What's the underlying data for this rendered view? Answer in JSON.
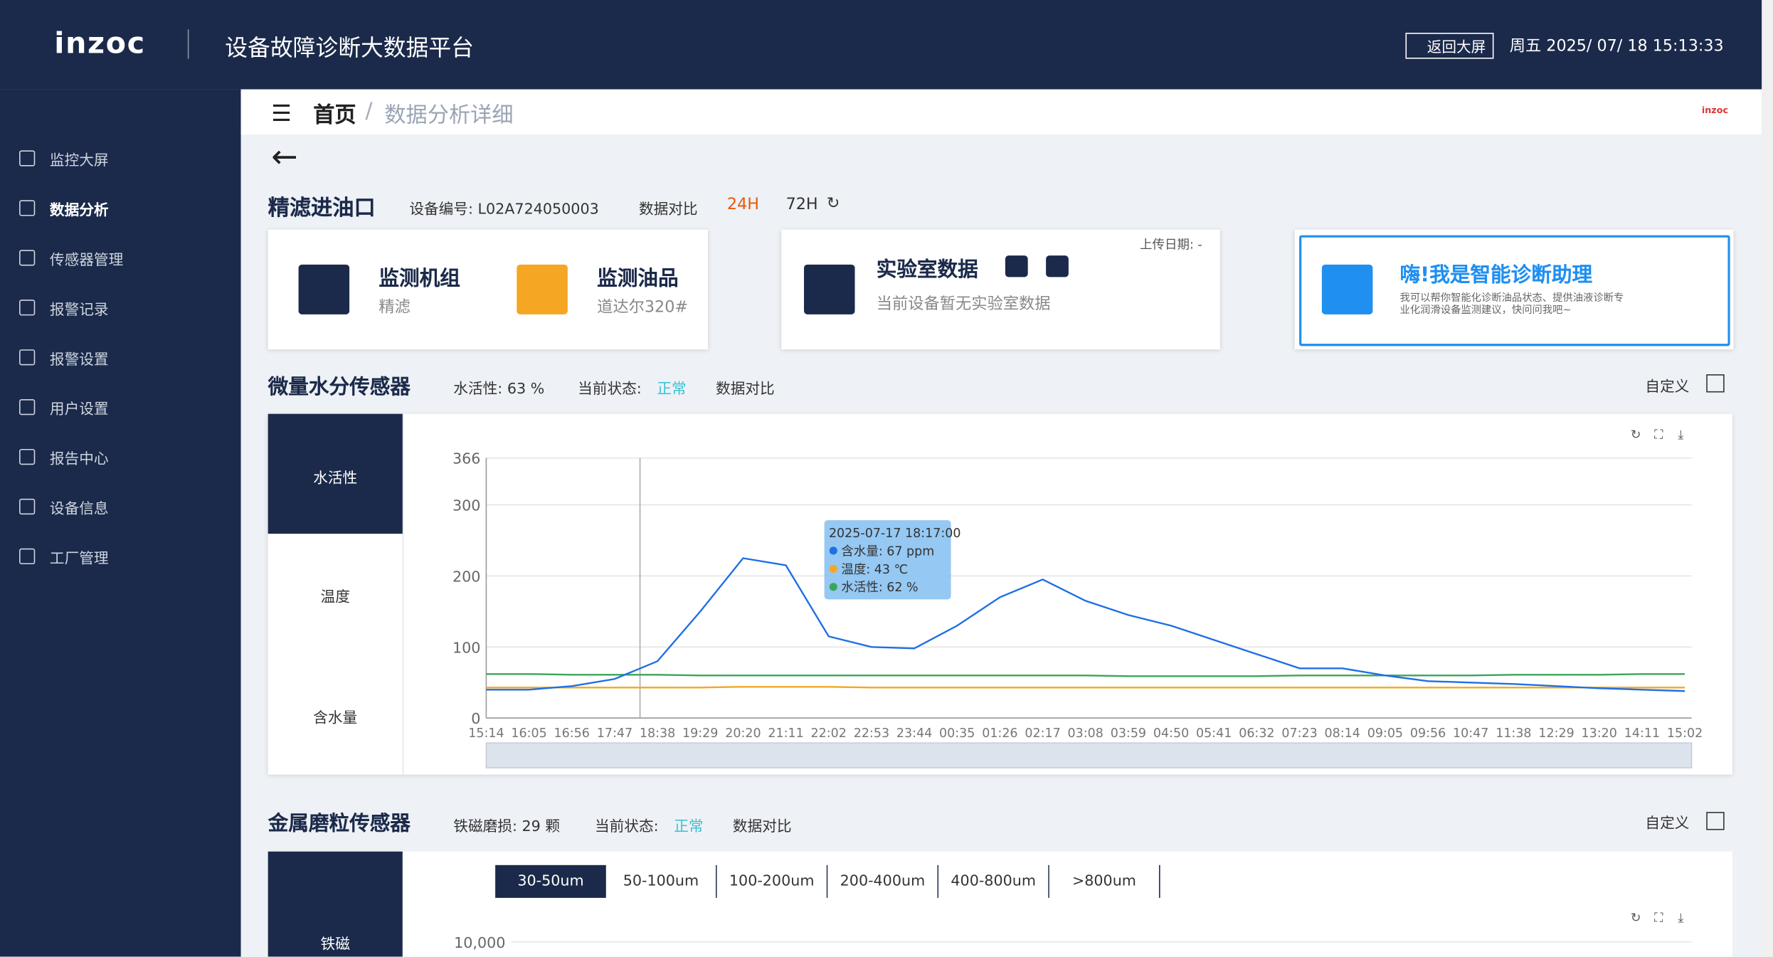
{
  "header": {
    "logo": "inzoc",
    "title": "设备故障诊断大数据平台",
    "back": "返回大屏",
    "datetime": "周五 2025/ 07/ 18 15:13:33"
  },
  "sidebar": {
    "items": [
      "监控大屏",
      "数据分析",
      "传感器管理",
      "报警记录",
      "报警设置",
      "用户设置",
      "报告中心",
      "设备信息",
      "工厂管理"
    ]
  },
  "breadcrumb": {
    "home": "首页",
    "current": "数据分析详细",
    "logo": "inzoc"
  },
  "device": {
    "name": "精滤进油口",
    "id": "设备编号: L02A724050003",
    "compare": "数据对比",
    "h24": "24H",
    "h72": "72H"
  },
  "cards": {
    "unit_title": "监测机组",
    "unit": "精滤",
    "oil_title": "监测油品",
    "oil": "道达尔320#",
    "lab_title": "实验室数据",
    "lab_text": "当前设备暂无实验室数据",
    "upload": "上传日期: -",
    "assistant_title": "嗨!我是智能诊断助理",
    "assistant_text": "我可以帮你智能化诊断油品状态、提供油液诊断专业化润滑设备监测建议，快问问我吧~"
  },
  "water": {
    "title": "微量水分传感器",
    "activity": "水活性: 63 %",
    "status_label": "当前状态:",
    "status": "正常",
    "compare": "数据对比",
    "custom": "自定义",
    "tabs": [
      "水活性",
      "温度",
      "含水量"
    ],
    "tooltip": {
      "time": "2025-07-17 18:17:00",
      "lines": [
        "含水量: 67 ppm",
        "温度: 43 ℃",
        "水活性: 62 %"
      ]
    }
  },
  "wear": {
    "title": "金属磨粒传感器",
    "count": "铁磁磨损: 29 颗",
    "status_label": "当前状态:",
    "status": "正常",
    "compare": "数据对比",
    "custom": "自定义",
    "tabs": [
      "铁磁"
    ],
    "sizes": [
      "30-50um",
      "50-100um",
      "100-200um",
      "200-400um",
      "400-800um",
      ">800um"
    ]
  },
  "chart_data": [
    {
      "type": "line",
      "categories": [
        "15:14",
        "16:05",
        "16:56",
        "17:47",
        "18:38",
        "19:29",
        "20:20",
        "21:11",
        "22:02",
        "22:53",
        "23:44",
        "00:35",
        "01:26",
        "02:17",
        "03:08",
        "03:59",
        "04:50",
        "05:41",
        "06:32",
        "07:23",
        "08:14",
        "09:05",
        "09:56",
        "10:47",
        "11:38",
        "12:29",
        "13:20",
        "14:11",
        "15:02"
      ],
      "series": [
        {
          "name": "含水量",
          "color": "#1f6fe5",
          "values": [
            40,
            40,
            45,
            55,
            80,
            150,
            225,
            215,
            115,
            100,
            98,
            130,
            170,
            195,
            165,
            145,
            130,
            110,
            90,
            70,
            70,
            60,
            52,
            50,
            48,
            45,
            42,
            40,
            38
          ]
        },
        {
          "name": "温度",
          "color": "#f5a623",
          "values": [
            43,
            43,
            43,
            43,
            43,
            43,
            44,
            44,
            44,
            43,
            43,
            43,
            43,
            43,
            43,
            43,
            43,
            43,
            43,
            43,
            43,
            43,
            43,
            43,
            43,
            43,
            43,
            43,
            43
          ]
        },
        {
          "name": "水活性",
          "color": "#3aa55a",
          "values": [
            62,
            62,
            61,
            61,
            61,
            60,
            60,
            60,
            60,
            60,
            60,
            60,
            60,
            60,
            60,
            59,
            59,
            59,
            59,
            60,
            60,
            60,
            60,
            60,
            61,
            61,
            61,
            62,
            62
          ]
        }
      ],
      "ylim": [
        0,
        366
      ],
      "yticks": [
        0,
        100,
        200,
        300,
        366
      ],
      "grid": true
    },
    {
      "type": "line",
      "ylim": [
        0,
        10000
      ],
      "yticks": [
        {
          "value": 10000,
          "label": "10,000"
        }
      ]
    }
  ]
}
